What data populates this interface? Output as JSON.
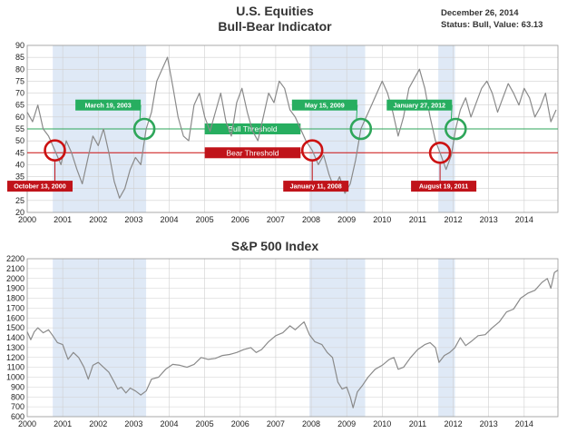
{
  "header": {
    "date": "December 26, 2014",
    "status": "Status: Bull, Value: 63.13"
  },
  "colors": {
    "shade": "#dfe9f6",
    "grid": "#d0d0d0",
    "line": "#8a8a8a",
    "bull": "#2ea65a",
    "bear": "#cc1111",
    "bull_label": "#27ae60",
    "bear_label": "#c0131a"
  },
  "chart_data": [
    {
      "type": "line",
      "title_line1": "U.S. Equities",
      "title_line2": "Bull-Bear Indicator",
      "xlim": [
        2000,
        2014.95
      ],
      "ylim": [
        20,
        90
      ],
      "yticks": [
        20,
        25,
        30,
        35,
        40,
        45,
        50,
        55,
        60,
        65,
        70,
        75,
        80,
        85,
        90
      ],
      "xticks": [
        "2000",
        "2001",
        "2002",
        "2003",
        "2004",
        "2005",
        "2006",
        "2007",
        "2008",
        "2009",
        "2010",
        "2011",
        "2012",
        "2013",
        "2014"
      ],
      "shaded_ranges": [
        [
          2000.72,
          2003.35
        ],
        [
          2007.95,
          2009.52
        ],
        [
          2011.58,
          2012.05
        ]
      ],
      "bull_threshold": {
        "value": 55,
        "label": "Bull Threshold"
      },
      "bear_threshold": {
        "value": 45,
        "label": "Bear Threshold"
      },
      "annotations": [
        {
          "text": "October 13, 2000",
          "x": 2000.78,
          "y": 46,
          "kind": "bear"
        },
        {
          "text": "March 19, 2003",
          "x": 2003.3,
          "y": 55,
          "kind": "bull"
        },
        {
          "text": "January 11, 2008",
          "x": 2008.03,
          "y": 46,
          "kind": "bear"
        },
        {
          "text": "May 15, 2009",
          "x": 2009.4,
          "y": 55,
          "kind": "bull"
        },
        {
          "text": "August 19, 2011",
          "x": 2011.63,
          "y": 45,
          "kind": "bear"
        },
        {
          "text": "January 27, 2012",
          "x": 2012.07,
          "y": 55,
          "kind": "bull"
        }
      ],
      "series": [
        {
          "name": "Bull-Bear Indicator",
          "x": [
            2000.0,
            2000.15,
            2000.3,
            2000.45,
            2000.6,
            2000.78,
            2000.95,
            2001.1,
            2001.25,
            2001.4,
            2001.55,
            2001.7,
            2001.85,
            2002.0,
            2002.15,
            2002.3,
            2002.45,
            2002.6,
            2002.75,
            2002.9,
            2003.05,
            2003.2,
            2003.35,
            2003.5,
            2003.65,
            2003.8,
            2003.95,
            2004.1,
            2004.25,
            2004.4,
            2004.55,
            2004.7,
            2004.85,
            2005.0,
            2005.15,
            2005.3,
            2005.45,
            2005.6,
            2005.75,
            2005.9,
            2006.05,
            2006.2,
            2006.35,
            2006.5,
            2006.65,
            2006.8,
            2006.95,
            2007.1,
            2007.25,
            2007.4,
            2007.55,
            2007.7,
            2007.85,
            2008.03,
            2008.2,
            2008.35,
            2008.5,
            2008.65,
            2008.8,
            2008.95,
            2009.1,
            2009.25,
            2009.4,
            2009.55,
            2009.7,
            2009.85,
            2010.0,
            2010.15,
            2010.3,
            2010.45,
            2010.6,
            2010.75,
            2010.9,
            2011.05,
            2011.2,
            2011.35,
            2011.5,
            2011.63,
            2011.8,
            2011.95,
            2012.07,
            2012.2,
            2012.35,
            2012.5,
            2012.65,
            2012.8,
            2012.95,
            2013.1,
            2013.25,
            2013.4,
            2013.55,
            2013.7,
            2013.85,
            2014.0,
            2014.15,
            2014.3,
            2014.45,
            2014.6,
            2014.75,
            2014.9
          ],
          "y": [
            62,
            58,
            65,
            55,
            52,
            46,
            40,
            50,
            45,
            38,
            32,
            42,
            52,
            48,
            55,
            45,
            33,
            26,
            30,
            38,
            43,
            40,
            55,
            62,
            75,
            80,
            85,
            73,
            60,
            52,
            50,
            65,
            70,
            60,
            54,
            62,
            70,
            58,
            52,
            66,
            72,
            62,
            54,
            50,
            60,
            70,
            66,
            75,
            72,
            63,
            60,
            55,
            50,
            46,
            40,
            44,
            36,
            30,
            35,
            28,
            32,
            42,
            55,
            60,
            65,
            70,
            75,
            70,
            62,
            52,
            60,
            72,
            76,
            80,
            72,
            60,
            50,
            45,
            38,
            44,
            55,
            63,
            68,
            60,
            66,
            72,
            75,
            70,
            62,
            68,
            74,
            70,
            65,
            72,
            68,
            60,
            64,
            70,
            58,
            63
          ]
        }
      ]
    },
    {
      "type": "line",
      "title": "S&P 500 Index",
      "xlim": [
        2000,
        2014.95
      ],
      "ylim": [
        600,
        2200
      ],
      "yticks": [
        600,
        700,
        800,
        900,
        1000,
        1100,
        1200,
        1300,
        1400,
        1500,
        1600,
        1700,
        1800,
        1900,
        2000,
        2100,
        2200
      ],
      "xticks": [
        "2000",
        "2001",
        "2002",
        "2003",
        "2004",
        "2005",
        "2006",
        "2007",
        "2008",
        "2009",
        "2010",
        "2011",
        "2012",
        "2013",
        "2014"
      ],
      "shaded_ranges": [
        [
          2000.72,
          2003.35
        ],
        [
          2007.95,
          2009.52
        ],
        [
          2011.58,
          2012.05
        ]
      ],
      "series": [
        {
          "name": "S&P 500",
          "x": [
            2000.0,
            2000.1,
            2000.2,
            2000.3,
            2000.45,
            2000.6,
            2000.72,
            2000.85,
            2001.0,
            2001.15,
            2001.3,
            2001.45,
            2001.6,
            2001.72,
            2001.85,
            2002.0,
            2002.15,
            2002.3,
            2002.45,
            2002.55,
            2002.65,
            2002.78,
            2002.9,
            2003.05,
            2003.2,
            2003.35,
            2003.5,
            2003.7,
            2003.9,
            2004.1,
            2004.3,
            2004.5,
            2004.7,
            2004.9,
            2005.1,
            2005.3,
            2005.5,
            2005.7,
            2005.9,
            2006.1,
            2006.3,
            2006.45,
            2006.6,
            2006.8,
            2007.0,
            2007.2,
            2007.4,
            2007.55,
            2007.7,
            2007.8,
            2007.95,
            2008.1,
            2008.3,
            2008.45,
            2008.6,
            2008.75,
            2008.87,
            2009.0,
            2009.1,
            2009.18,
            2009.3,
            2009.45,
            2009.6,
            2009.8,
            2010.0,
            2010.2,
            2010.33,
            2010.45,
            2010.6,
            2010.8,
            2011.0,
            2011.2,
            2011.35,
            2011.5,
            2011.6,
            2011.75,
            2011.9,
            2012.05,
            2012.2,
            2012.35,
            2012.5,
            2012.7,
            2012.9,
            2013.1,
            2013.3,
            2013.5,
            2013.7,
            2013.9,
            2014.1,
            2014.3,
            2014.5,
            2014.65,
            2014.75,
            2014.85,
            2014.95
          ],
          "y": [
            1460,
            1380,
            1460,
            1500,
            1450,
            1480,
            1420,
            1350,
            1330,
            1180,
            1250,
            1200,
            1100,
            980,
            1120,
            1150,
            1100,
            1050,
            950,
            880,
            900,
            840,
            890,
            860,
            820,
            860,
            980,
            1000,
            1080,
            1130,
            1120,
            1100,
            1130,
            1200,
            1180,
            1190,
            1220,
            1230,
            1250,
            1280,
            1300,
            1250,
            1280,
            1360,
            1420,
            1450,
            1520,
            1480,
            1530,
            1560,
            1430,
            1360,
            1330,
            1250,
            1200,
            950,
            880,
            900,
            800,
            690,
            850,
            920,
            1000,
            1080,
            1120,
            1180,
            1200,
            1080,
            1100,
            1200,
            1280,
            1330,
            1350,
            1300,
            1150,
            1220,
            1250,
            1300,
            1400,
            1320,
            1360,
            1420,
            1430,
            1500,
            1560,
            1660,
            1690,
            1800,
            1850,
            1880,
            1960,
            2000,
            1900,
            2060,
            2085
          ]
        }
      ]
    }
  ]
}
